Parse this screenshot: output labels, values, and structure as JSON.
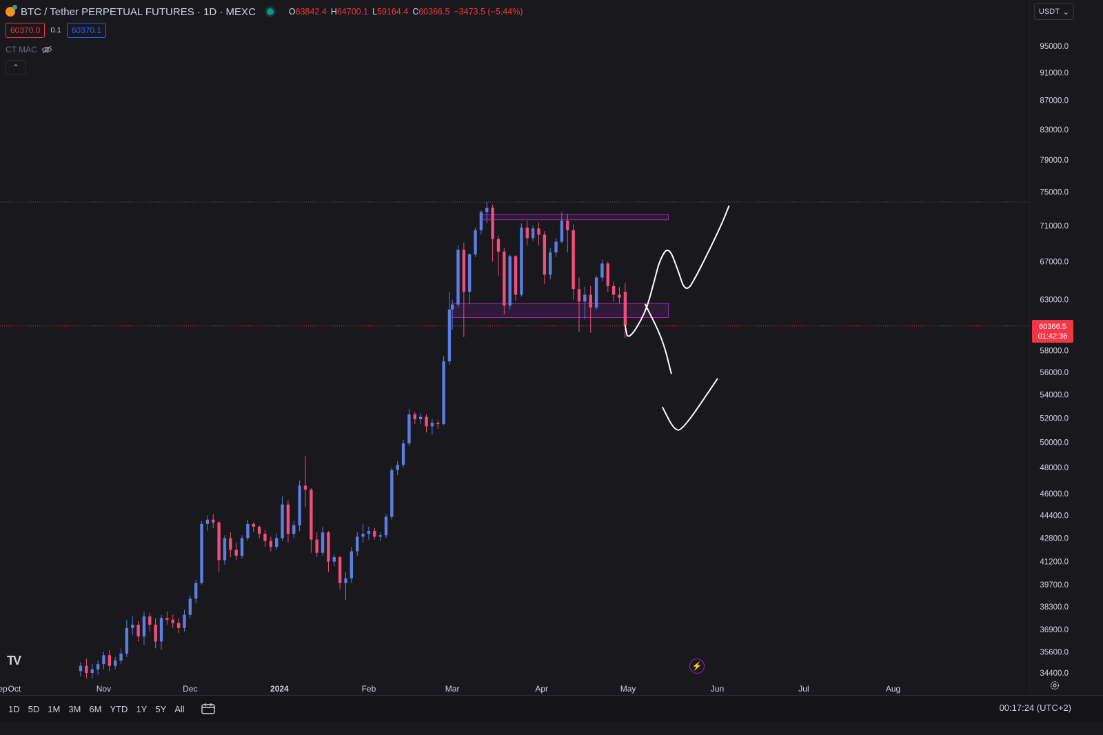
{
  "header": {
    "symbol_title": "BTC / Tether PERPETUAL FUTURES · 1D · MEXC",
    "ohlc": {
      "o_label": "O",
      "o": "63842.4",
      "h_label": "H",
      "h": "64700.1",
      "l_label": "L",
      "l": "59164.4",
      "c_label": "C",
      "c": "60366.5",
      "change": "−3473.5 (−5.44%)"
    }
  },
  "order_panel": {
    "sell_price": "60370.0",
    "spread": "0.1",
    "buy_price": "60370.1"
  },
  "indicator": {
    "name": "CT MAC"
  },
  "currency_selector": "USDT",
  "last_price_tag": {
    "price": "60366.5",
    "countdown": "01:42:36"
  },
  "bottom_bar": {
    "ranges": [
      "1D",
      "5D",
      "1M",
      "3M",
      "6M",
      "YTD",
      "1Y",
      "5Y",
      "All"
    ],
    "clock": "00:17:24 (UTC+2)"
  },
  "colors": {
    "background": "#18181d",
    "up": "#5b7fe0",
    "down": "#ef4f7a",
    "zone": "#9c27b0",
    "drawing": "#ffffff",
    "last_price": "#f23645"
  },
  "chart_data": {
    "type": "candlestick",
    "title": "",
    "xlabel": "",
    "ylabel": "",
    "x_ticks": [
      "ep",
      "Oct",
      "Nov",
      "Dec",
      "2024",
      "Feb",
      "Mar",
      "Apr",
      "May",
      "Jun",
      "Jul",
      "Aug"
    ],
    "y_ticks": [
      "95000.0",
      "91000.0",
      "87000.0",
      "83000.0",
      "79000.0",
      "75000.0",
      "71000.0",
      "67000.0",
      "63000.0",
      "58000.0",
      "56000.0",
      "54000.0",
      "52000.0",
      "50000.0",
      "48000.0",
      "46000.0",
      "44400.0",
      "42800.0",
      "41200.0",
      "39700.0",
      "38300.0",
      "36900.0",
      "35600.0",
      "34400.0"
    ],
    "ylim": [
      34000,
      97000
    ],
    "y_scale": "log",
    "grid": false,
    "x_range": [
      "2023-09-01",
      "2024-08-31"
    ],
    "candles": [
      [
        "2023-10-24",
        34500,
        35000,
        34200,
        34800
      ],
      [
        "2023-10-26",
        34800,
        35200,
        34100,
        34400
      ],
      [
        "2023-10-28",
        34400,
        34900,
        34100,
        34600
      ],
      [
        "2023-10-30",
        34600,
        35100,
        34300,
        34900
      ],
      [
        "2023-11-01",
        34900,
        35600,
        34600,
        35400
      ],
      [
        "2023-11-03",
        35400,
        35700,
        34500,
        34800
      ],
      [
        "2023-11-05",
        34800,
        35300,
        34600,
        35100
      ],
      [
        "2023-11-07",
        35100,
        35800,
        34900,
        35500
      ],
      [
        "2023-11-09",
        35500,
        37500,
        35300,
        37000
      ],
      [
        "2023-11-11",
        37000,
        37700,
        36600,
        37200
      ],
      [
        "2023-11-13",
        37200,
        37400,
        36200,
        36500
      ],
      [
        "2023-11-15",
        36500,
        38000,
        36000,
        37700
      ],
      [
        "2023-11-17",
        37700,
        37900,
        36800,
        37200
      ],
      [
        "2023-11-19",
        37200,
        37600,
        35800,
        36200
      ],
      [
        "2023-11-21",
        36200,
        37800,
        35700,
        37600
      ],
      [
        "2023-11-23",
        37600,
        38000,
        37200,
        37500
      ],
      [
        "2023-11-25",
        37500,
        37800,
        37000,
        37300
      ],
      [
        "2023-11-27",
        37300,
        37600,
        36700,
        37000
      ],
      [
        "2023-11-29",
        37000,
        38100,
        36800,
        37800
      ],
      [
        "2023-12-01",
        37800,
        39000,
        37600,
        38800
      ],
      [
        "2023-12-03",
        38800,
        40000,
        38500,
        39800
      ],
      [
        "2023-12-05",
        39800,
        44000,
        39700,
        43800
      ],
      [
        "2023-12-07",
        43800,
        44400,
        43300,
        44100
      ],
      [
        "2023-12-09",
        44100,
        44500,
        43500,
        43900
      ],
      [
        "2023-12-11",
        43900,
        44000,
        40500,
        41300
      ],
      [
        "2023-12-13",
        41300,
        43000,
        41000,
        42800
      ],
      [
        "2023-12-15",
        42800,
        43200,
        41500,
        42000
      ],
      [
        "2023-12-17",
        42000,
        42500,
        41300,
        41600
      ],
      [
        "2023-12-19",
        41600,
        43000,
        41400,
        42800
      ],
      [
        "2023-12-21",
        42800,
        44100,
        42600,
        43800
      ],
      [
        "2023-12-23",
        43800,
        43900,
        43200,
        43600
      ],
      [
        "2023-12-25",
        43600,
        43700,
        42800,
        43100
      ],
      [
        "2023-12-27",
        43100,
        43400,
        42200,
        42600
      ],
      [
        "2023-12-29",
        42600,
        42900,
        41900,
        42200
      ],
      [
        "2023-12-31",
        42200,
        43100,
        42000,
        42800
      ],
      [
        "2024-01-02",
        42800,
        45800,
        42600,
        45200
      ],
      [
        "2024-01-04",
        45200,
        45500,
        42500,
        43100
      ],
      [
        "2024-01-06",
        43100,
        44000,
        42800,
        43700
      ],
      [
        "2024-01-08",
        43700,
        47000,
        43300,
        46600
      ],
      [
        "2024-01-10",
        46600,
        48900,
        45000,
        46300
      ],
      [
        "2024-01-12",
        46300,
        46400,
        41800,
        42700
      ],
      [
        "2024-01-14",
        42700,
        43200,
        41500,
        41800
      ],
      [
        "2024-01-16",
        41800,
        43600,
        41600,
        43200
      ],
      [
        "2024-01-18",
        43200,
        43300,
        40500,
        41200
      ],
      [
        "2024-01-20",
        41200,
        41700,
        40900,
        41500
      ],
      [
        "2024-01-22",
        41500,
        41600,
        39400,
        39800
      ],
      [
        "2024-01-24",
        39800,
        40500,
        38700,
        40100
      ],
      [
        "2024-01-26",
        40100,
        42200,
        39800,
        41900
      ],
      [
        "2024-01-28",
        41900,
        43200,
        41600,
        42900
      ],
      [
        "2024-01-30",
        42900,
        43800,
        42500,
        43100
      ],
      [
        "2024-02-01",
        43100,
        43600,
        42700,
        43300
      ],
      [
        "2024-02-03",
        43300,
        43500,
        42700,
        42900
      ],
      [
        "2024-02-05",
        42900,
        43200,
        42600,
        43000
      ],
      [
        "2024-02-07",
        43000,
        44500,
        42800,
        44300
      ],
      [
        "2024-02-09",
        44300,
        48000,
        44100,
        47800
      ],
      [
        "2024-02-11",
        47800,
        48500,
        47400,
        48200
      ],
      [
        "2024-02-13",
        48200,
        50200,
        48000,
        49900
      ],
      [
        "2024-02-15",
        49900,
        52800,
        49700,
        52300
      ],
      [
        "2024-02-17",
        52300,
        52500,
        51500,
        51900
      ],
      [
        "2024-02-19",
        51900,
        52400,
        51500,
        52100
      ],
      [
        "2024-02-21",
        52100,
        52300,
        50800,
        51300
      ],
      [
        "2024-02-23",
        51300,
        51900,
        50600,
        51600
      ],
      [
        "2024-02-25",
        51600,
        51800,
        51100,
        51500
      ],
      [
        "2024-02-27",
        51500,
        57500,
        51400,
        57000
      ],
      [
        "2024-02-29",
        57000,
        63800,
        56700,
        62000
      ],
      [
        "2024-03-01",
        62000,
        63000,
        60000,
        62500
      ],
      [
        "2024-03-03",
        62500,
        68800,
        62200,
        68300
      ],
      [
        "2024-03-05",
        68300,
        69100,
        59300,
        63800
      ],
      [
        "2024-03-07",
        63800,
        67900,
        62500,
        67800
      ],
      [
        "2024-03-09",
        67800,
        70800,
        67500,
        70500
      ],
      [
        "2024-03-11",
        70500,
        72800,
        70000,
        72600
      ],
      [
        "2024-03-13",
        72600,
        73800,
        71300,
        73100
      ],
      [
        "2024-03-15",
        73100,
        73500,
        67000,
        69500
      ],
      [
        "2024-03-17",
        69500,
        69900,
        65500,
        68100
      ],
      [
        "2024-03-19",
        68100,
        68500,
        61500,
        62400
      ],
      [
        "2024-03-21",
        62400,
        67800,
        62000,
        67600
      ],
      [
        "2024-03-23",
        67600,
        67700,
        62900,
        63500
      ],
      [
        "2024-03-25",
        63500,
        71300,
        63300,
        70800
      ],
      [
        "2024-03-27",
        70800,
        71600,
        68800,
        69600
      ],
      [
        "2024-03-29",
        69600,
        71000,
        69300,
        70700
      ],
      [
        "2024-03-31",
        70700,
        71400,
        68800,
        70000
      ],
      [
        "2024-04-02",
        70000,
        70400,
        64600,
        65600
      ],
      [
        "2024-04-04",
        65600,
        68500,
        65100,
        68000
      ],
      [
        "2024-04-06",
        68000,
        69600,
        67500,
        69200
      ],
      [
        "2024-04-08",
        69200,
        72600,
        69000,
        71600
      ],
      [
        "2024-04-10",
        71600,
        72400,
        68000,
        70500
      ],
      [
        "2024-04-12",
        70500,
        71200,
        63000,
        64100
      ],
      [
        "2024-04-14",
        64100,
        65300,
        59800,
        62800
      ],
      [
        "2024-04-16",
        62800,
        64300,
        61000,
        63500
      ],
      [
        "2024-04-18",
        63500,
        64400,
        59700,
        62200
      ],
      [
        "2024-04-20",
        62200,
        65500,
        62000,
        65300
      ],
      [
        "2024-04-22",
        65300,
        67200,
        64900,
        66800
      ],
      [
        "2024-04-24",
        66800,
        67000,
        63800,
        64400
      ],
      [
        "2024-04-26",
        64400,
        64900,
        62800,
        63500
      ],
      [
        "2024-04-28",
        63500,
        64300,
        62600,
        63200
      ],
      [
        "2024-04-30",
        63800,
        64700,
        59200,
        60400
      ]
    ],
    "zones": [
      {
        "from": "2024-03-11",
        "to": "2024-05-15",
        "y_low": 71700,
        "y_high": 72300
      },
      {
        "from": "2024-03-01",
        "to": "2024-05-15",
        "y_low": 61200,
        "y_high": 62600
      }
    ],
    "reference_lines": [
      {
        "y": 73800,
        "style": "dotted"
      },
      {
        "y": 60366.5,
        "style": "dotted-red"
      }
    ],
    "drawings": [
      [
        [
          "2024-04-30",
          60400
        ],
        [
          "2024-05-01",
          58900
        ],
        [
          "2024-05-07",
          61600
        ],
        [
          "2024-05-10",
          64800
        ],
        [
          "2024-05-12",
          67200
        ],
        [
          "2024-05-15",
          68700
        ],
        [
          "2024-05-18",
          66400
        ],
        [
          "2024-05-21",
          63600
        ],
        [
          "2024-05-25",
          65600
        ],
        [
          "2024-06-02",
          70800
        ],
        [
          "2024-06-05",
          73300
        ]
      ],
      [
        [
          "2024-05-07",
          62500
        ],
        [
          "2024-05-13",
          59100
        ],
        [
          "2024-05-16",
          55900
        ]
      ],
      [
        [
          "2024-05-13",
          52900
        ],
        [
          "2024-05-17",
          51000
        ],
        [
          "2024-05-20",
          51000
        ],
        [
          "2024-06-01",
          55400
        ]
      ]
    ]
  }
}
